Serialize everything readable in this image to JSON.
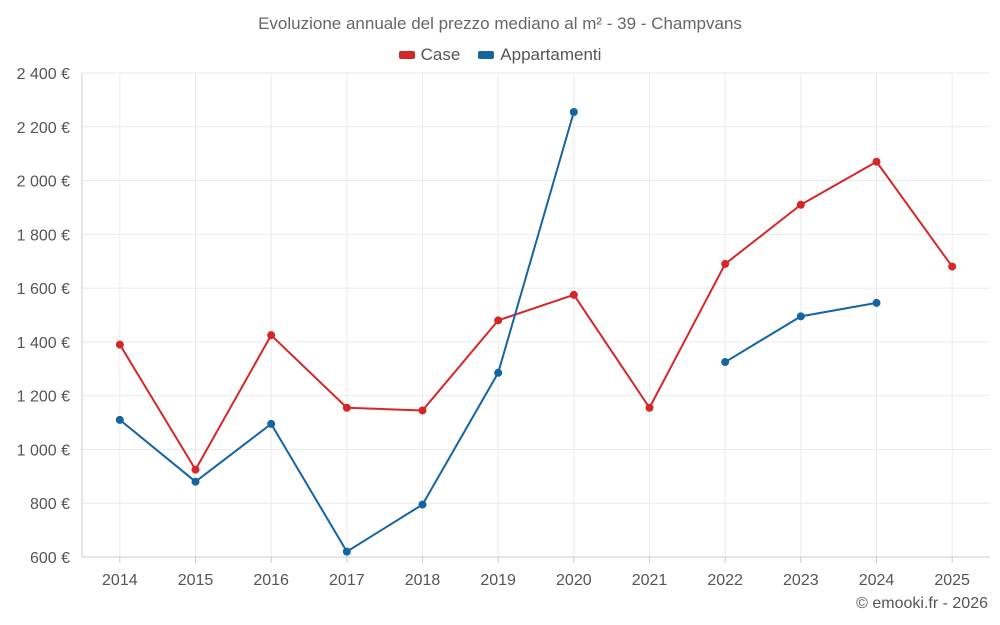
{
  "chart_data": {
    "type": "line",
    "title": "Evoluzione annuale del prezzo mediano al m² - 39 - Champvans",
    "xlabel": "",
    "ylabel": "",
    "x": [
      "2014",
      "2015",
      "2016",
      "2017",
      "2018",
      "2019",
      "2020",
      "2021",
      "2022",
      "2023",
      "2024",
      "2025"
    ],
    "ylim": [
      600,
      2400
    ],
    "yticks": [
      600,
      800,
      1000,
      1200,
      1400,
      1600,
      1800,
      2000,
      2200,
      2400
    ],
    "ytick_labels": [
      "600 €",
      "800 €",
      "1 000 €",
      "1 200 €",
      "1 400 €",
      "1 600 €",
      "1 800 €",
      "2 000 €",
      "2 200 €",
      "2 400 €"
    ],
    "grid": true,
    "legend_position": "top-center",
    "series": [
      {
        "name": "Case",
        "color": "#d62728",
        "values": [
          1390,
          925,
          1425,
          1155,
          1145,
          1480,
          1575,
          1155,
          1690,
          1910,
          2070,
          1680
        ]
      },
      {
        "name": "Appartamenti",
        "color": "#1565a0",
        "values": [
          1110,
          880,
          1095,
          620,
          795,
          1285,
          2255,
          null,
          1325,
          1495,
          1545,
          null
        ]
      }
    ]
  },
  "footer": "© emooki.fr - 2026"
}
